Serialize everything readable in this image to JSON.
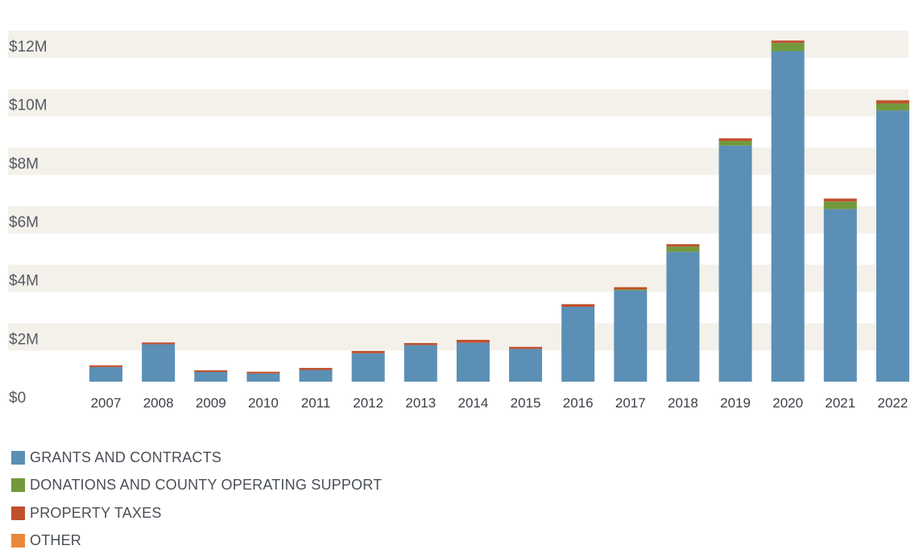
{
  "chart_data": {
    "type": "bar",
    "stacked": true,
    "title": "",
    "xlabel": "",
    "ylabel": "",
    "ylim": [
      0,
      13000000
    ],
    "yticks": [
      0,
      2000000,
      4000000,
      6000000,
      8000000,
      10000000,
      12000000
    ],
    "ytick_labels": [
      "$0",
      "$2M",
      "$4M",
      "$6M",
      "$8M",
      "$10M",
      "$12M"
    ],
    "categories": [
      "2007",
      "2008",
      "2009",
      "2010",
      "2011",
      "2012",
      "2013",
      "2014",
      "2015",
      "2016",
      "2017",
      "2018",
      "2019",
      "2020",
      "2021",
      "2022"
    ],
    "series": [
      {
        "name": "GRANTS AND CONTRACTS",
        "color": "#5b8fb5",
        "values": [
          500000,
          1280000,
          330000,
          280000,
          400000,
          970000,
          1250000,
          1330000,
          1120000,
          2560000,
          3120000,
          4440000,
          8070000,
          11300000,
          5900000,
          9270000
        ]
      },
      {
        "name": "DONATIONS AND COUNTY OPERATING SUPPORT",
        "color": "#72993c",
        "values": [
          0,
          0,
          0,
          0,
          0,
          0,
          0,
          0,
          0,
          0,
          30000,
          180000,
          160000,
          280000,
          260000,
          240000
        ]
      },
      {
        "name": "PROPERTY TAXES",
        "color": "#c1502e",
        "values": [
          60000,
          60000,
          60000,
          60000,
          70000,
          80000,
          70000,
          100000,
          70000,
          90000,
          80000,
          80000,
          90000,
          80000,
          100000,
          110000
        ]
      },
      {
        "name": "OTHER",
        "color": "#e8883a",
        "values": [
          0,
          0,
          0,
          0,
          0,
          0,
          0,
          0,
          0,
          0,
          0,
          0,
          0,
          0,
          0,
          0
        ]
      }
    ],
    "gridlines": "alternating horizontal bands",
    "legend_position": "bottom-left"
  },
  "colors": {
    "band": "#f4f1eb",
    "background": "#ffffff"
  }
}
